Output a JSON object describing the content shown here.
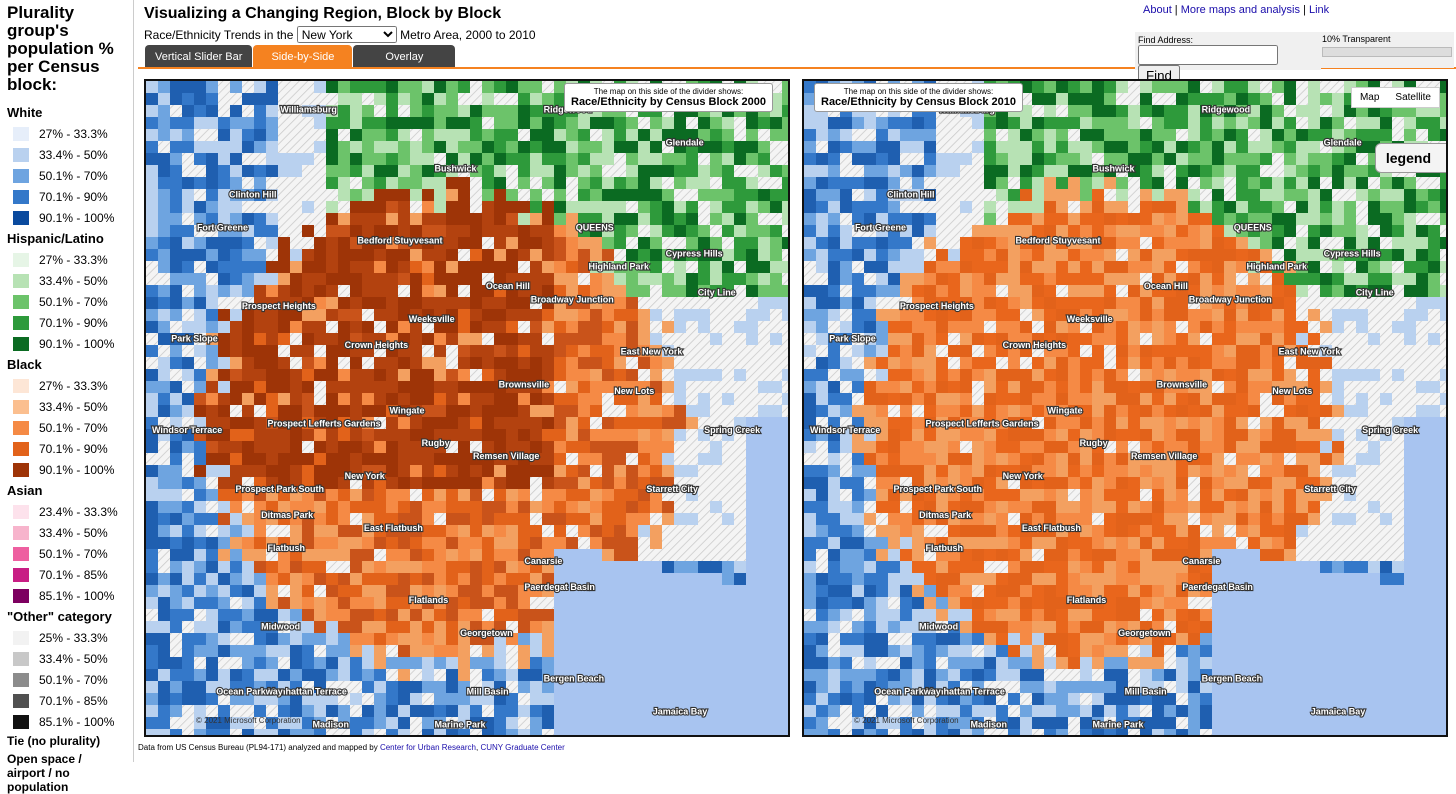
{
  "sidebar": {
    "title": "Plurality group's population % per Census block:",
    "groups": [
      {
        "name": "White",
        "items": [
          {
            "label": "27% - 33.3%",
            "color": "#e6eefa"
          },
          {
            "label": "33.4% - 50%",
            "color": "#b9d1ef"
          },
          {
            "label": "50.1% - 70%",
            "color": "#6ea4e0"
          },
          {
            "label": "70.1% - 90%",
            "color": "#3478c9"
          },
          {
            "label": "90.1% - 100%",
            "color": "#0a4a9e"
          }
        ]
      },
      {
        "name": "Hispanic/Latino",
        "items": [
          {
            "label": "27% - 33.3%",
            "color": "#e6f5e6"
          },
          {
            "label": "33.4% - 50%",
            "color": "#b7e2b4"
          },
          {
            "label": "50.1% - 70%",
            "color": "#6cc36a"
          },
          {
            "label": "70.1% - 90%",
            "color": "#2e9a3b"
          },
          {
            "label": "90.1% - 100%",
            "color": "#0b6b22"
          }
        ]
      },
      {
        "name": "Black",
        "items": [
          {
            "label": "27% - 33.3%",
            "color": "#fde6d6"
          },
          {
            "label": "33.4% - 50%",
            "color": "#fbbf8f"
          },
          {
            "label": "50.1% - 70%",
            "color": "#f58a45"
          },
          {
            "label": "70.1% - 90%",
            "color": "#e2621a"
          },
          {
            "label": "90.1% - 100%",
            "color": "#9e3407"
          }
        ]
      },
      {
        "name": "Asian",
        "items": [
          {
            "label": "23.4% - 33.3%",
            "color": "#fde2ec"
          },
          {
            "label": "33.4% - 50%",
            "color": "#f7b4cc"
          },
          {
            "label": "50.1% - 70%",
            "color": "#ee5fa0"
          },
          {
            "label": "70.1% - 85%",
            "color": "#c81e84"
          },
          {
            "label": "85.1% - 100%",
            "color": "#7d0060"
          }
        ]
      },
      {
        "name": "\"Other\" category",
        "items": [
          {
            "label": "25% - 33.3%",
            "color": "#f2f2f2"
          },
          {
            "label": "33.4% - 50%",
            "color": "#c8c8c8"
          },
          {
            "label": "50.1% - 70%",
            "color": "#8c8c8c"
          },
          {
            "label": "70.1% - 85%",
            "color": "#505050"
          },
          {
            "label": "85.1% - 100%",
            "color": "#111111"
          }
        ]
      }
    ],
    "tie": "Tie (no plurality)",
    "open_space": "Open space / airport / no population"
  },
  "header": {
    "title": "Visualizing a Changing Region, Block by Block",
    "prefix": "Race/Ethnicity Trends in the",
    "metro": "New York",
    "suffix": "Metro Area, 2000 to 2010"
  },
  "tabs": [
    "Vertical Slider Bar",
    "Side-by-Side",
    "Overlay"
  ],
  "links": [
    "About",
    "More maps and analysis",
    "Link"
  ],
  "find": {
    "label": "Find Address:",
    "button": "Find"
  },
  "transparency": "10% Transparent",
  "maps": [
    {
      "caption": "The map on this side of the divider shows:",
      "title": "Race/Ethnicity by Census Block 2000"
    },
    {
      "caption": "The map on this side of the divider shows:",
      "title": "Race/Ethnicity by Census Block 2010"
    }
  ],
  "map_types": [
    "Map",
    "Satellite"
  ],
  "legend_button": "legend",
  "copyright": "© 2021 Microsoft Corporation",
  "neighborhoods": [
    "Williamsburg",
    "Ridgewood",
    "Glendale",
    "Bushwick",
    "Clinton Hill",
    "Fort Greene",
    "Bedford Stuyvesant",
    "QUEENS",
    "Cypress Hills",
    "Highland Park",
    "Ocean Hill",
    "Broadway Junction",
    "City Line",
    "Prospect Heights",
    "Park Slope",
    "Crown Heights",
    "Weeksville",
    "East New York",
    "Brownsville",
    "New Lots",
    "Wingate",
    "Prospect Lefferts Gardens",
    "Rugby",
    "Remsen Village",
    "Spring Creek",
    "Windsor Terrace",
    "New York",
    "Starrett City",
    "Prospect Park South",
    "Ditmas Park",
    "East Flatbush",
    "Flatbush",
    "Canarsie",
    "Paerdegat Basin",
    "Flatlands",
    "Midwood",
    "Georgetown",
    "Mill Basin",
    "Bergen Beach",
    "Jamaica Bay",
    "Manhattan Terrace",
    "Ocean Parkway",
    "Madison",
    "Marine Park"
  ],
  "footer": {
    "text": "Data from US Census Bureau (PL94-171) analyzed and mapped by",
    "links": [
      "Center for Urban Research",
      "CUNY Graduate Center"
    ]
  }
}
